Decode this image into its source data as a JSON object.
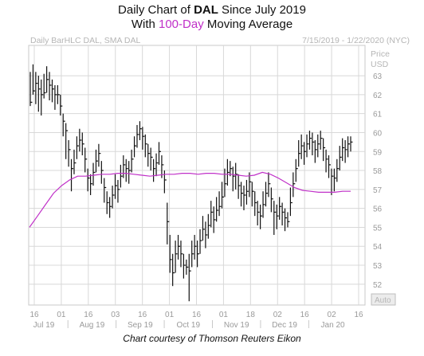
{
  "title": {
    "pre": "Daily Chart of ",
    "ticker": "DAL",
    "post": " Since July 2019",
    "line2_pre": "With ",
    "line2_ma": "100-Day",
    "line2_post": " Moving Average"
  },
  "legend_left": "Daily BarHLC DAL, SMA DAL",
  "legend_right": "7/15/2019 - 1/22/2020 (NYC)",
  "axis_unit_top": "Price",
  "axis_unit_bottom": "USD",
  "auto_label": "Auto",
  "footer": "Chart courtesy of Thomson Reuters Eikon",
  "colors": {
    "ma_line": "#c030c8",
    "bars": "#111111",
    "grid": "#d8d8d8"
  },
  "chart_data": {
    "type": "bar",
    "style": "ohlc",
    "title": "Daily Chart of DAL Since July 2019 With 100-Day Moving Average",
    "ylim": [
      50.9,
      64.6
    ],
    "y_ticks": [
      52,
      53,
      54,
      55,
      56,
      57,
      58,
      59,
      60,
      61,
      62,
      63
    ],
    "x_day_ticks": [
      "16",
      "01",
      "16",
      "03",
      "16",
      "01",
      "16",
      "01",
      "18",
      "02",
      "16",
      "02",
      "16"
    ],
    "x_month_ticks": [
      "Jul 19",
      "Aug 19",
      "Sep 19",
      "Oct 19",
      "Nov 19",
      "Dec 19",
      "Jan 20"
    ],
    "grid": true,
    "series": [
      {
        "name": "DAL",
        "values": [
          [
            61.6,
            63.2,
            61.4
          ],
          [
            62.2,
            63.6,
            62.0
          ],
          [
            62.6,
            63.2,
            61.5
          ],
          [
            62.3,
            63.0,
            61.1
          ],
          [
            62.0,
            62.8,
            60.9
          ],
          [
            62.1,
            63.1,
            61.8
          ],
          [
            62.8,
            63.5,
            62.1
          ],
          [
            62.5,
            63.2,
            61.7
          ],
          [
            62.3,
            62.8,
            61.6
          ],
          [
            62.0,
            62.5,
            61.2
          ],
          [
            62.0,
            62.5,
            61.5
          ],
          [
            61.4,
            62.0,
            60.9
          ],
          [
            60.6,
            61.0,
            59.8
          ],
          [
            60.1,
            60.5,
            58.6
          ],
          [
            59.1,
            59.6,
            58.2
          ],
          [
            58.1,
            58.6,
            56.9
          ],
          [
            58.4,
            59.1,
            57.8
          ],
          [
            59.3,
            59.8,
            58.6
          ],
          [
            59.6,
            60.2,
            59.0
          ],
          [
            59.4,
            60.0,
            58.8
          ],
          [
            58.6,
            59.2,
            57.9
          ],
          [
            57.6,
            58.1,
            56.9
          ],
          [
            57.3,
            57.8,
            56.7
          ],
          [
            57.9,
            58.4,
            57.2
          ],
          [
            58.5,
            59.1,
            57.9
          ],
          [
            58.9,
            59.4,
            58.2
          ],
          [
            58.0,
            58.5,
            57.3
          ],
          [
            57.1,
            57.6,
            56.3
          ],
          [
            56.3,
            56.9,
            55.7
          ],
          [
            56.1,
            56.6,
            55.5
          ],
          [
            56.7,
            57.2,
            56.0
          ],
          [
            57.2,
            57.8,
            56.5
          ],
          [
            57.0,
            57.5,
            56.3
          ],
          [
            57.7,
            58.3,
            57.1
          ],
          [
            58.3,
            58.8,
            57.6
          ],
          [
            58.1,
            58.6,
            57.4
          ],
          [
            58.0,
            58.5,
            57.3
          ],
          [
            58.6,
            59.1,
            57.9
          ],
          [
            59.3,
            59.8,
            58.7
          ],
          [
            59.9,
            60.4,
            59.2
          ],
          [
            60.2,
            60.6,
            59.6
          ],
          [
            59.8,
            60.3,
            59.1
          ],
          [
            59.4,
            59.9,
            58.7
          ],
          [
            58.9,
            59.4,
            58.2
          ],
          [
            58.7,
            59.2,
            58.0
          ],
          [
            58.1,
            58.6,
            57.4
          ],
          [
            58.4,
            58.9,
            57.7
          ],
          [
            59.0,
            59.5,
            58.3
          ],
          [
            58.3,
            58.8,
            57.6
          ],
          [
            57.5,
            58.0,
            56.8
          ],
          [
            55.3,
            56.3,
            54.1
          ],
          [
            53.3,
            54.6,
            52.6
          ],
          [
            52.6,
            53.6,
            51.9
          ],
          [
            53.6,
            54.3,
            52.6
          ],
          [
            54.0,
            54.6,
            53.3
          ],
          [
            53.6,
            54.3,
            52.9
          ],
          [
            53.0,
            53.6,
            52.3
          ],
          [
            52.9,
            53.3,
            52.5
          ],
          [
            52.7,
            53.6,
            51.1
          ],
          [
            53.6,
            54.3,
            52.9
          ],
          [
            54.0,
            54.6,
            53.3
          ],
          [
            53.6,
            54.3,
            52.9
          ],
          [
            54.3,
            54.9,
            53.6
          ],
          [
            54.9,
            55.6,
            54.3
          ],
          [
            54.6,
            55.3,
            53.9
          ],
          [
            55.1,
            55.7,
            54.4
          ],
          [
            55.8,
            56.4,
            55.0
          ],
          [
            55.4,
            56.1,
            54.7
          ],
          [
            55.9,
            56.6,
            55.3
          ],
          [
            56.1,
            56.9,
            55.6
          ],
          [
            56.6,
            57.4,
            56.0
          ],
          [
            57.3,
            58.1,
            56.6
          ],
          [
            57.9,
            58.6,
            57.2
          ],
          [
            58.1,
            58.5,
            57.7
          ],
          [
            57.7,
            58.2,
            56.9
          ],
          [
            57.8,
            58.4,
            57.0
          ],
          [
            57.2,
            57.8,
            56.5
          ],
          [
            56.8,
            57.4,
            56.1
          ],
          [
            56.7,
            57.2,
            55.9
          ],
          [
            56.9,
            57.5,
            56.2
          ],
          [
            57.4,
            57.9,
            56.6
          ],
          [
            56.9,
            57.4,
            56.1
          ],
          [
            56.3,
            56.9,
            55.6
          ],
          [
            55.8,
            56.4,
            55.1
          ],
          [
            55.6,
            56.2,
            54.9
          ],
          [
            56.2,
            56.9,
            55.5
          ],
          [
            56.8,
            57.4,
            56.1
          ],
          [
            57.3,
            57.9,
            56.6
          ],
          [
            56.5,
            57.1,
            55.8
          ],
          [
            55.8,
            56.4,
            54.6
          ],
          [
            55.6,
            56.2,
            54.9
          ],
          [
            56.1,
            56.6,
            55.4
          ],
          [
            55.8,
            56.3,
            55.1
          ],
          [
            55.5,
            56.0,
            54.8
          ],
          [
            55.3,
            55.8,
            55.0
          ],
          [
            56.3,
            57.1,
            55.6
          ],
          [
            57.3,
            57.9,
            56.6
          ],
          [
            58.1,
            58.6,
            57.4
          ],
          [
            58.9,
            59.6,
            58.2
          ],
          [
            59.3,
            59.9,
            58.6
          ],
          [
            59.0,
            59.5,
            58.3
          ],
          [
            59.4,
            59.9,
            58.7
          ],
          [
            59.7,
            60.1,
            59.1
          ],
          [
            59.5,
            60.0,
            58.8
          ],
          [
            59.1,
            59.6,
            58.4
          ],
          [
            59.4,
            59.9,
            58.7
          ],
          [
            59.7,
            60.1,
            59.1
          ],
          [
            59.2,
            59.7,
            58.5
          ],
          [
            58.6,
            59.1,
            57.9
          ],
          [
            58.3,
            58.8,
            57.6
          ],
          [
            57.7,
            58.1,
            56.7
          ],
          [
            57.6,
            58.1,
            56.9
          ],
          [
            58.1,
            58.6,
            57.4
          ],
          [
            58.7,
            59.3,
            58.0
          ],
          [
            59.2,
            59.7,
            58.5
          ],
          [
            59.1,
            59.6,
            58.4
          ],
          [
            59.4,
            59.8,
            58.7
          ],
          [
            59.5,
            59.8,
            59.0
          ]
        ]
      },
      {
        "name": "SMA DAL",
        "values": [
          55.0,
          55.6,
          56.2,
          56.8,
          57.2,
          57.5,
          57.7,
          57.7,
          57.75,
          57.8,
          57.8,
          57.85,
          57.85,
          57.8,
          57.75,
          57.7,
          57.75,
          57.8,
          57.8,
          57.85,
          57.85,
          57.8,
          57.85,
          57.85,
          57.8,
          57.8,
          57.75,
          57.7,
          57.75,
          57.9,
          57.8,
          57.6,
          57.35,
          57.1,
          56.95,
          56.9,
          56.85,
          56.85,
          56.85,
          56.9,
          56.9
        ]
      }
    ]
  }
}
